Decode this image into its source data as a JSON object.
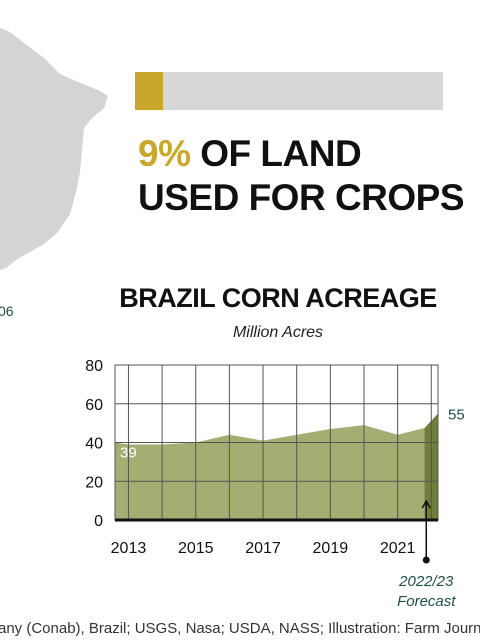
{
  "map": {
    "label": "06"
  },
  "land_share": {
    "percent": 9,
    "percent_text": "9%",
    "rest_text": " OF LAND",
    "line2": "USED FOR CROPS",
    "fill_color": "#c9a72b",
    "track_color": "#d7d7d7"
  },
  "chart_data": {
    "type": "area",
    "title": "BRAZIL CORN ACREAGE",
    "subtitle": "Million Acres",
    "x": [
      2012.6,
      2013,
      2014,
      2015,
      2016,
      2017,
      2018,
      2019,
      2020,
      2021,
      2021.8,
      2022.2
    ],
    "y": [
      40,
      39,
      39,
      40,
      44,
      41,
      44,
      47,
      49,
      44,
      47.5,
      55
    ],
    "xlim": [
      2012.6,
      2022.2
    ],
    "ylim": [
      0,
      80
    ],
    "yticks": [
      0,
      20,
      40,
      60,
      80
    ],
    "xticks": [
      2013,
      2015,
      2017,
      2019,
      2021
    ],
    "forecast_from": 2021.8,
    "start_label": "39",
    "end_label": "55",
    "forecast_label_line1": "2022/23",
    "forecast_label_line2": "Forecast",
    "grid": true,
    "colors": {
      "historical": "#a4ae73",
      "forecast": "#6e7f3c",
      "grid": "#555555",
      "label_teal": "#1f4d4a"
    }
  },
  "source": "any (Conab), Brazil; USGS, Nasa; USDA, NASS; Illustration: Farm Journal"
}
